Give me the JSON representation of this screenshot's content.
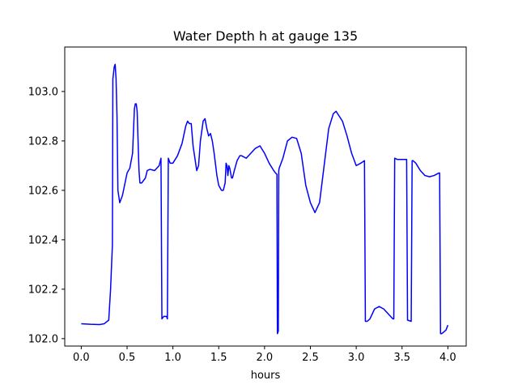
{
  "chart_data": {
    "type": "line",
    "title": "Water Depth h at gauge 135",
    "xlabel": "hours",
    "ylabel": "",
    "xlim": [
      -0.18,
      4.2
    ],
    "ylim": [
      101.97,
      103.18
    ],
    "xticks": [
      0.0,
      0.5,
      1.0,
      1.5,
      2.0,
      2.5,
      3.0,
      3.5,
      4.0
    ],
    "xtick_labels": [
      "0.0",
      "0.5",
      "1.0",
      "1.5",
      "2.0",
      "2.5",
      "3.0",
      "3.5",
      "4.0"
    ],
    "yticks": [
      102.0,
      102.2,
      102.4,
      102.6,
      102.8,
      103.0
    ],
    "ytick_labels": [
      "102.0",
      "102.2",
      "102.4",
      "102.6",
      "102.8",
      "103.0"
    ],
    "grid": false,
    "series": [
      {
        "color": "#0000ff",
        "x": [
          0.0,
          0.1,
          0.2,
          0.25,
          0.3,
          0.32,
          0.34,
          0.345,
          0.36,
          0.37,
          0.38,
          0.39,
          0.4,
          0.42,
          0.45,
          0.5,
          0.53,
          0.56,
          0.58,
          0.59,
          0.6,
          0.61,
          0.62,
          0.63,
          0.64,
          0.66,
          0.7,
          0.72,
          0.75,
          0.8,
          0.85,
          0.87,
          0.88,
          0.9,
          0.93,
          0.94,
          0.95,
          0.97,
          1.0,
          1.05,
          1.1,
          1.14,
          1.16,
          1.18,
          1.2,
          1.22,
          1.26,
          1.28,
          1.3,
          1.33,
          1.35,
          1.37,
          1.39,
          1.41,
          1.43,
          1.45,
          1.48,
          1.5,
          1.53,
          1.55,
          1.57,
          1.58,
          1.59,
          1.6,
          1.61,
          1.62,
          1.63,
          1.64,
          1.65,
          1.67,
          1.7,
          1.73,
          1.75,
          1.8,
          1.85,
          1.9,
          1.95,
          2.0,
          2.05,
          2.1,
          2.12,
          2.135,
          2.14,
          2.15,
          2.155,
          2.16,
          2.2,
          2.25,
          2.3,
          2.35,
          2.4,
          2.45,
          2.5,
          2.55,
          2.6,
          2.65,
          2.7,
          2.75,
          2.78,
          2.85,
          2.9,
          2.95,
          3.0,
          3.05,
          3.09,
          3.1,
          3.12,
          3.15,
          3.2,
          3.25,
          3.3,
          3.35,
          3.4,
          3.41,
          3.42,
          3.45,
          3.5,
          3.55,
          3.56,
          3.6,
          3.61,
          3.62,
          3.65,
          3.7,
          3.75,
          3.8,
          3.85,
          3.9,
          3.91,
          3.92,
          3.93,
          3.95,
          3.98,
          4.0
        ],
        "y": [
          102.06,
          102.058,
          102.057,
          102.06,
          102.075,
          102.2,
          102.38,
          103.05,
          103.1,
          103.11,
          103.05,
          102.9,
          102.6,
          102.55,
          102.58,
          102.67,
          102.69,
          102.75,
          102.93,
          102.95,
          102.95,
          102.92,
          102.8,
          102.68,
          102.63,
          102.63,
          102.65,
          102.68,
          102.685,
          102.68,
          102.7,
          102.73,
          102.08,
          102.09,
          102.09,
          102.08,
          102.73,
          102.71,
          102.71,
          102.74,
          102.79,
          102.86,
          102.88,
          102.87,
          102.87,
          102.78,
          102.68,
          102.7,
          102.8,
          102.88,
          102.89,
          102.85,
          102.82,
          102.83,
          102.8,
          102.75,
          102.66,
          102.62,
          102.6,
          102.6,
          102.63,
          102.71,
          102.7,
          102.66,
          102.7,
          102.69,
          102.67,
          102.65,
          102.65,
          102.68,
          102.72,
          102.74,
          102.74,
          102.73,
          102.75,
          102.77,
          102.78,
          102.75,
          102.71,
          102.68,
          102.67,
          102.665,
          102.02,
          102.03,
          102.68,
          102.69,
          102.73,
          102.8,
          102.815,
          102.81,
          102.75,
          102.62,
          102.55,
          102.51,
          102.55,
          102.7,
          102.85,
          102.91,
          102.92,
          102.88,
          102.82,
          102.75,
          102.7,
          102.71,
          102.72,
          102.07,
          102.07,
          102.08,
          102.12,
          102.13,
          102.12,
          102.1,
          102.08,
          102.08,
          102.73,
          102.725,
          102.725,
          102.725,
          102.075,
          102.07,
          102.72,
          102.72,
          102.71,
          102.68,
          102.66,
          102.655,
          102.66,
          102.67,
          102.67,
          102.02,
          102.02,
          102.025,
          102.035,
          102.055
        ]
      }
    ]
  }
}
